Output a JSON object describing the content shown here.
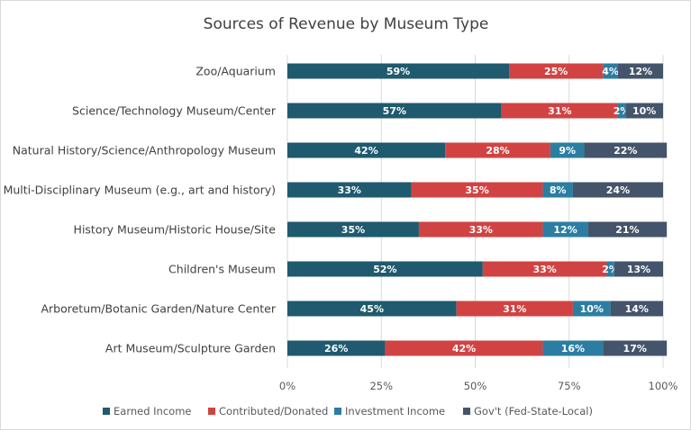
{
  "chart_data": {
    "type": "bar",
    "orientation": "horizontal",
    "stacked": "percent",
    "title": "Sources of Revenue by Museum Type",
    "xlabel": "",
    "ylabel": "",
    "xlim": [
      0,
      100
    ],
    "x_ticks": [
      "0%",
      "25%",
      "50%",
      "75%",
      "100%"
    ],
    "grid": true,
    "legend_position": "bottom",
    "categories": [
      "Zoo/Aquarium",
      "Science/Technology Museum/Center",
      "Natural History/Science/Anthropology Museum",
      "Multi-Disciplinary Museum (e.g., art and history)",
      "History Museum/Historic House/Site",
      "Children's Museum",
      "Arboretum/Botanic Garden/Nature Center",
      "Art Museum/Sculpture Garden"
    ],
    "series": [
      {
        "name": "Earned Income",
        "color": "#1f5a6e",
        "values": [
          59,
          57,
          42,
          33,
          35,
          52,
          45,
          26
        ]
      },
      {
        "name": "Contributed/Donated",
        "color": "#d14343",
        "values": [
          25,
          31,
          28,
          35,
          33,
          33,
          31,
          42
        ]
      },
      {
        "name": "Investment Income",
        "color": "#2b7ea1",
        "values": [
          4,
          2,
          9,
          8,
          12,
          2,
          10,
          16
        ]
      },
      {
        "name": "Gov't (Fed-State-Local)",
        "color": "#44546a",
        "values": [
          12,
          10,
          22,
          24,
          21,
          13,
          14,
          17
        ]
      }
    ]
  }
}
